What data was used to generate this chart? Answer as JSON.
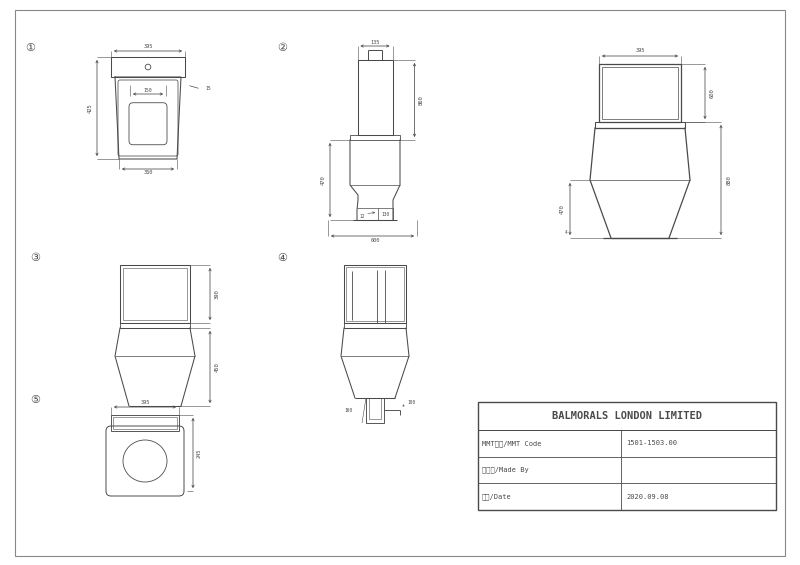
{
  "company": "BALMORALS LONDON LIMITED",
  "mmt_label": "MMT代号/MMT Code",
  "mmt_value": "1501-1503.00",
  "made_by_label": "制图人/Made By",
  "made_by_value": "",
  "date_label": "日期/Date",
  "date_value": "2020.09.08",
  "bg_color": "#ffffff",
  "line_color": "#4a4a4a",
  "dim_color": "#4a4a4a"
}
